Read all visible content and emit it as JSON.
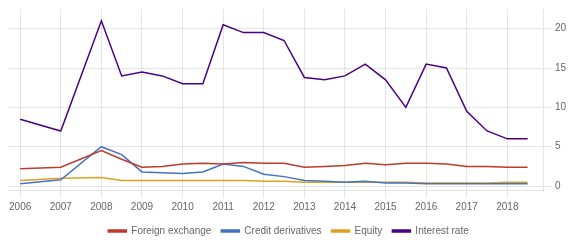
{
  "chart_data": {
    "type": "line",
    "x": [
      2006,
      2007,
      2008,
      2008.5,
      2009,
      2009.5,
      2010,
      2010.5,
      2011,
      2011.5,
      2012,
      2012.5,
      2013,
      2013.5,
      2014,
      2014.5,
      2015,
      2015.5,
      2016,
      2016.5,
      2017,
      2017.5,
      2018,
      2018.5
    ],
    "series": [
      {
        "name": "Foreign exchange",
        "color": "#c0392b",
        "values": [
          2.2,
          2.4,
          4.5,
          3.4,
          2.4,
          2.5,
          2.8,
          2.9,
          2.8,
          3.0,
          2.9,
          2.9,
          2.4,
          2.5,
          2.6,
          2.9,
          2.7,
          2.9,
          2.9,
          2.8,
          2.5,
          2.5,
          2.4,
          2.4
        ]
      },
      {
        "name": "Credit derivatives",
        "color": "#4472c4",
        "values": [
          0.3,
          0.8,
          5.0,
          4.0,
          1.8,
          1.7,
          1.6,
          1.8,
          2.8,
          2.5,
          1.5,
          1.2,
          0.7,
          0.6,
          0.5,
          0.6,
          0.4,
          0.4,
          0.3,
          0.3,
          0.3,
          0.3,
          0.3,
          0.3
        ]
      },
      {
        "name": "Equity",
        "color": "#e0a020",
        "values": [
          0.7,
          1.0,
          1.1,
          0.7,
          0.7,
          0.7,
          0.7,
          0.7,
          0.7,
          0.7,
          0.6,
          0.6,
          0.5,
          0.5,
          0.5,
          0.5,
          0.5,
          0.5,
          0.4,
          0.4,
          0.4,
          0.4,
          0.5,
          0.5
        ]
      },
      {
        "name": "Interest rate",
        "color": "#4b0082",
        "values": [
          8.5,
          7.0,
          21.0,
          14.0,
          14.5,
          14.0,
          13.0,
          13.0,
          20.5,
          19.5,
          19.5,
          18.5,
          13.8,
          13.5,
          14.0,
          15.5,
          13.5,
          10.0,
          15.5,
          15.0,
          9.5,
          7.0,
          6.0,
          6.0
        ]
      }
    ],
    "xlim": [
      2005.7,
      2018.9
    ],
    "xticks": [
      2006,
      2007,
      2008,
      2009,
      2010,
      2011,
      2012,
      2013,
      2014,
      2015,
      2016,
      2017,
      2018
    ],
    "ylim": [
      -0.5,
      22.5
    ],
    "yticks": [
      0,
      5,
      10,
      15,
      20
    ],
    "grid": true,
    "legend": "bottom"
  }
}
